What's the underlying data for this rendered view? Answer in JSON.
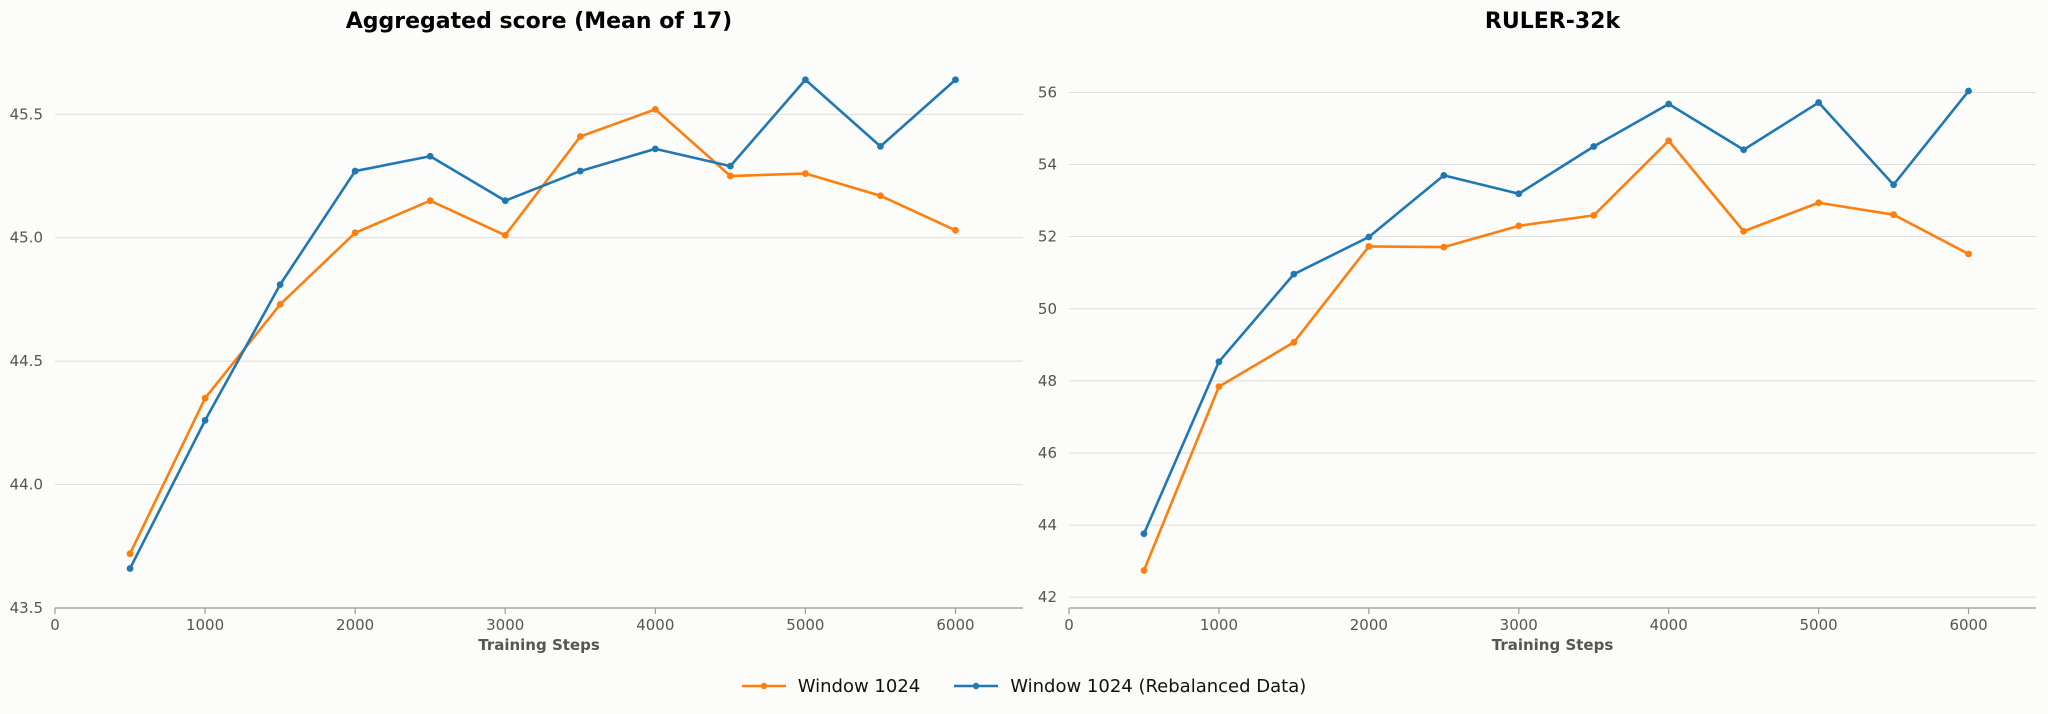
{
  "chart_data": [
    {
      "type": "line",
      "title": "Aggregated score (Mean of 17)",
      "xlabel": "Training Steps",
      "ylabel": "",
      "xlim": [
        0,
        6450
      ],
      "ylim": [
        43.5,
        45.72
      ],
      "x_ticks": [
        0,
        1000,
        2000,
        3000,
        4000,
        5000,
        6000
      ],
      "y_ticks": [
        43.5,
        44.0,
        44.5,
        45.0,
        45.5
      ],
      "y_tick_labels": [
        "43.5",
        "44.0",
        "44.5",
        "45.0",
        "45.5"
      ],
      "grid": "horizontal",
      "x": [
        500,
        1000,
        1500,
        2000,
        2500,
        3000,
        3500,
        4000,
        4500,
        5000,
        5500,
        6000
      ],
      "series": [
        {
          "name": "Window 1024",
          "color": "#ff7f0e",
          "values": [
            43.72,
            44.35,
            44.73,
            45.02,
            45.15,
            45.01,
            45.41,
            45.52,
            45.25,
            45.26,
            45.17,
            45.03
          ]
        },
        {
          "name": "Window 1024 (Rebalanced Data)",
          "color": "#1f77b4",
          "values": [
            43.66,
            44.26,
            44.81,
            45.27,
            45.33,
            45.15,
            45.27,
            45.36,
            45.29,
            45.64,
            45.37,
            45.64
          ]
        }
      ]
    },
    {
      "type": "line",
      "title": "RULER-32k",
      "xlabel": "Training Steps",
      "ylabel": "",
      "xlim": [
        0,
        6450
      ],
      "ylim": [
        41.7,
        56.9
      ],
      "x_ticks": [
        0,
        1000,
        2000,
        3000,
        4000,
        5000,
        6000
      ],
      "y_ticks": [
        42,
        44,
        46,
        48,
        50,
        52,
        54,
        56
      ],
      "y_tick_labels": [
        "42",
        "44",
        "46",
        "48",
        "50",
        "52",
        "54",
        "56"
      ],
      "grid": "horizontal",
      "x": [
        500,
        1000,
        1500,
        2000,
        2500,
        3000,
        3500,
        4000,
        4500,
        5000,
        5500,
        6000
      ],
      "series": [
        {
          "name": "Window 1024",
          "color": "#ff7f0e",
          "values": [
            42.74,
            47.84,
            49.07,
            51.73,
            51.71,
            52.3,
            52.59,
            54.66,
            52.15,
            52.94,
            52.61,
            51.52
          ]
        },
        {
          "name": "Window 1024 (Rebalanced Data)",
          "color": "#1f77b4",
          "values": [
            43.76,
            48.53,
            50.96,
            51.99,
            53.7,
            53.19,
            54.5,
            55.68,
            54.41,
            55.72,
            53.44,
            56.04
          ]
        }
      ]
    }
  ],
  "legend": {
    "placement": "bottom-center",
    "items": [
      {
        "label": "Window 1024",
        "color": "#ff7f0e"
      },
      {
        "label": "Window 1024 (Rebalanced Data)",
        "color": "#1f77b4"
      }
    ]
  }
}
